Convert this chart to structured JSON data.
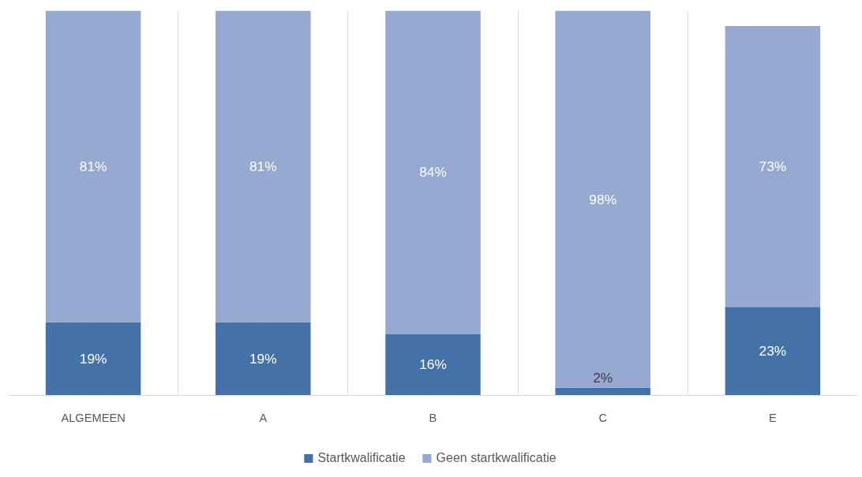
{
  "chart_data": {
    "type": "bar",
    "stacked": true,
    "grid": "x",
    "legend": "bottom",
    "categories": [
      "ALGEMEEN",
      "A",
      "B",
      "C",
      "E"
    ],
    "series": [
      {
        "name": "Startkwalificatie",
        "color": "#4472a8",
        "values": [
          19,
          19,
          16,
          2,
          23
        ],
        "value_labels": [
          "19%",
          "19%",
          "16%",
          "2%",
          "23%"
        ]
      },
      {
        "name": "Geen startkwalificatie",
        "color": "#95a9d1",
        "values": [
          81,
          81,
          84,
          98,
          73
        ],
        "value_labels": [
          "81%",
          "81%",
          "84%",
          "98%",
          "73%"
        ]
      }
    ]
  }
}
